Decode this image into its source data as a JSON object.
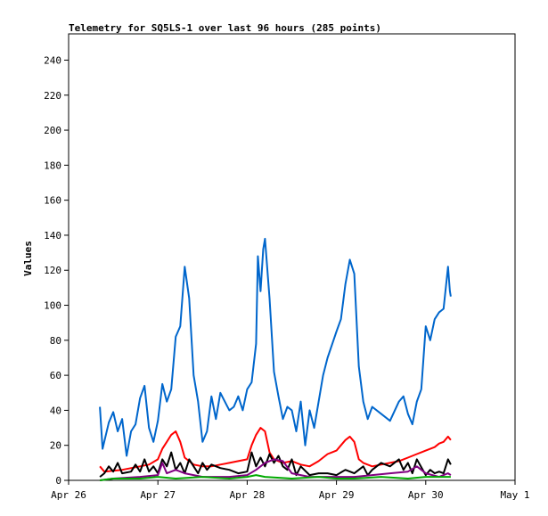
{
  "chart_data": {
    "type": "line",
    "title": "Telemetry for SQ5LS-1 over last 96 hours (285 points)",
    "xlabel": "",
    "ylabel": "Values",
    "ylim": [
      0,
      255
    ],
    "yticks": [
      0,
      20,
      40,
      60,
      80,
      100,
      120,
      140,
      160,
      180,
      200,
      220,
      240
    ],
    "xlim": [
      "Apr 26",
      "May 1"
    ],
    "xticks": [
      "Apr 26",
      "Apr 27",
      "Apr 28",
      "Apr 29",
      "Apr 30",
      "May 1"
    ],
    "grid": false,
    "legend": "none",
    "series": [
      {
        "color": "#0066cc",
        "points": [
          [
            0.35,
            42
          ],
          [
            0.38,
            18
          ],
          [
            0.45,
            33
          ],
          [
            0.5,
            39
          ],
          [
            0.55,
            28
          ],
          [
            0.6,
            35
          ],
          [
            0.65,
            14
          ],
          [
            0.7,
            28
          ],
          [
            0.75,
            32
          ],
          [
            0.8,
            47
          ],
          [
            0.85,
            54
          ],
          [
            0.9,
            30
          ],
          [
            0.95,
            22
          ],
          [
            1.0,
            34
          ],
          [
            1.05,
            55
          ],
          [
            1.1,
            45
          ],
          [
            1.15,
            52
          ],
          [
            1.2,
            82
          ],
          [
            1.25,
            88
          ],
          [
            1.3,
            122
          ],
          [
            1.35,
            104
          ],
          [
            1.4,
            60
          ],
          [
            1.45,
            45
          ],
          [
            1.5,
            22
          ],
          [
            1.55,
            28
          ],
          [
            1.6,
            48
          ],
          [
            1.65,
            35
          ],
          [
            1.7,
            50
          ],
          [
            1.75,
            45
          ],
          [
            1.8,
            40
          ],
          [
            1.85,
            42
          ],
          [
            1.9,
            48
          ],
          [
            1.95,
            40
          ],
          [
            2.0,
            52
          ],
          [
            2.05,
            56
          ],
          [
            2.1,
            78
          ],
          [
            2.12,
            128
          ],
          [
            2.15,
            108
          ],
          [
            2.18,
            132
          ],
          [
            2.2,
            138
          ],
          [
            2.25,
            104
          ],
          [
            2.3,
            62
          ],
          [
            2.35,
            48
          ],
          [
            2.4,
            35
          ],
          [
            2.45,
            42
          ],
          [
            2.5,
            40
          ],
          [
            2.55,
            28
          ],
          [
            2.6,
            45
          ],
          [
            2.65,
            20
          ],
          [
            2.7,
            40
          ],
          [
            2.75,
            30
          ],
          [
            2.8,
            45
          ],
          [
            2.85,
            60
          ],
          [
            2.9,
            70
          ],
          [
            3.0,
            85
          ],
          [
            3.05,
            92
          ],
          [
            3.1,
            112
          ],
          [
            3.15,
            126
          ],
          [
            3.2,
            118
          ],
          [
            3.25,
            65
          ],
          [
            3.3,
            45
          ],
          [
            3.35,
            35
          ],
          [
            3.4,
            42
          ],
          [
            3.5,
            38
          ],
          [
            3.6,
            34
          ],
          [
            3.7,
            45
          ],
          [
            3.75,
            48
          ],
          [
            3.8,
            38
          ],
          [
            3.85,
            32
          ],
          [
            3.9,
            45
          ],
          [
            3.95,
            52
          ],
          [
            4.0,
            88
          ],
          [
            4.05,
            80
          ],
          [
            4.1,
            92
          ],
          [
            4.15,
            96
          ],
          [
            4.2,
            98
          ],
          [
            4.25,
            122
          ],
          [
            4.27,
            108
          ],
          [
            4.28,
            105
          ]
        ]
      },
      {
        "color": "#ff0000",
        "points": [
          [
            0.35,
            8
          ],
          [
            0.4,
            5
          ],
          [
            0.6,
            6
          ],
          [
            0.8,
            8
          ],
          [
            0.9,
            9
          ],
          [
            1.0,
            12
          ],
          [
            1.05,
            18
          ],
          [
            1.1,
            22
          ],
          [
            1.15,
            26
          ],
          [
            1.2,
            28
          ],
          [
            1.25,
            22
          ],
          [
            1.3,
            13
          ],
          [
            1.4,
            9
          ],
          [
            1.5,
            8
          ],
          [
            1.6,
            8
          ],
          [
            1.7,
            9
          ],
          [
            1.8,
            10
          ],
          [
            1.9,
            11
          ],
          [
            2.0,
            12
          ],
          [
            2.05,
            20
          ],
          [
            2.1,
            26
          ],
          [
            2.15,
            30
          ],
          [
            2.2,
            28
          ],
          [
            2.25,
            16
          ],
          [
            2.3,
            12
          ],
          [
            2.4,
            10
          ],
          [
            2.5,
            11
          ],
          [
            2.6,
            9
          ],
          [
            2.7,
            8
          ],
          [
            2.8,
            11
          ],
          [
            2.9,
            15
          ],
          [
            3.0,
            17
          ],
          [
            3.05,
            20
          ],
          [
            3.1,
            23
          ],
          [
            3.15,
            25
          ],
          [
            3.2,
            22
          ],
          [
            3.25,
            12
          ],
          [
            3.3,
            10
          ],
          [
            3.4,
            8
          ],
          [
            3.5,
            9
          ],
          [
            3.6,
            10
          ],
          [
            3.7,
            11
          ],
          [
            3.8,
            13
          ],
          [
            3.9,
            15
          ],
          [
            4.0,
            17
          ],
          [
            4.1,
            19
          ],
          [
            4.15,
            21
          ],
          [
            4.2,
            22
          ],
          [
            4.25,
            25
          ],
          [
            4.28,
            23
          ]
        ]
      },
      {
        "color": "#000000",
        "points": [
          [
            0.35,
            2
          ],
          [
            0.4,
            4
          ],
          [
            0.45,
            8
          ],
          [
            0.5,
            5
          ],
          [
            0.55,
            10
          ],
          [
            0.6,
            4
          ],
          [
            0.7,
            5
          ],
          [
            0.75,
            9
          ],
          [
            0.8,
            5
          ],
          [
            0.85,
            12
          ],
          [
            0.9,
            5
          ],
          [
            0.95,
            8
          ],
          [
            1.0,
            4
          ],
          [
            1.05,
            12
          ],
          [
            1.1,
            8
          ],
          [
            1.15,
            16
          ],
          [
            1.2,
            6
          ],
          [
            1.25,
            10
          ],
          [
            1.3,
            4
          ],
          [
            1.35,
            12
          ],
          [
            1.4,
            8
          ],
          [
            1.45,
            4
          ],
          [
            1.5,
            10
          ],
          [
            1.55,
            6
          ],
          [
            1.6,
            9
          ],
          [
            1.7,
            7
          ],
          [
            1.8,
            6
          ],
          [
            1.9,
            4
          ],
          [
            2.0,
            5
          ],
          [
            2.05,
            16
          ],
          [
            2.1,
            8
          ],
          [
            2.15,
            13
          ],
          [
            2.2,
            8
          ],
          [
            2.25,
            15
          ],
          [
            2.3,
            10
          ],
          [
            2.35,
            14
          ],
          [
            2.4,
            8
          ],
          [
            2.45,
            6
          ],
          [
            2.5,
            12
          ],
          [
            2.55,
            3
          ],
          [
            2.6,
            8
          ],
          [
            2.7,
            3
          ],
          [
            2.8,
            4
          ],
          [
            2.9,
            4
          ],
          [
            3.0,
            3
          ],
          [
            3.1,
            6
          ],
          [
            3.2,
            4
          ],
          [
            3.3,
            8
          ],
          [
            3.35,
            3
          ],
          [
            3.4,
            6
          ],
          [
            3.5,
            10
          ],
          [
            3.6,
            8
          ],
          [
            3.7,
            12
          ],
          [
            3.75,
            6
          ],
          [
            3.8,
            10
          ],
          [
            3.85,
            4
          ],
          [
            3.9,
            12
          ],
          [
            4.0,
            3
          ],
          [
            4.05,
            6
          ],
          [
            4.1,
            4
          ],
          [
            4.15,
            5
          ],
          [
            4.2,
            4
          ],
          [
            4.25,
            12
          ],
          [
            4.28,
            9
          ]
        ]
      },
      {
        "color": "#800080",
        "points": [
          [
            0.35,
            0
          ],
          [
            0.5,
            1
          ],
          [
            0.8,
            2
          ],
          [
            1.0,
            3
          ],
          [
            1.05,
            10
          ],
          [
            1.1,
            4
          ],
          [
            1.2,
            6
          ],
          [
            1.3,
            4
          ],
          [
            1.5,
            2
          ],
          [
            1.8,
            2
          ],
          [
            2.0,
            3
          ],
          [
            2.1,
            6
          ],
          [
            2.2,
            10
          ],
          [
            2.3,
            12
          ],
          [
            2.4,
            11
          ],
          [
            2.5,
            4
          ],
          [
            2.7,
            2
          ],
          [
            3.0,
            2
          ],
          [
            3.2,
            2
          ],
          [
            3.4,
            3
          ],
          [
            3.6,
            4
          ],
          [
            3.8,
            5
          ],
          [
            3.9,
            8
          ],
          [
            4.0,
            4
          ],
          [
            4.15,
            2
          ],
          [
            4.2,
            3
          ],
          [
            4.25,
            4
          ],
          [
            4.28,
            3
          ]
        ]
      },
      {
        "color": "#00aa00",
        "points": [
          [
            0.35,
            0
          ],
          [
            0.5,
            1
          ],
          [
            0.8,
            1
          ],
          [
            1.0,
            2
          ],
          [
            1.2,
            1
          ],
          [
            1.5,
            2
          ],
          [
            1.8,
            1
          ],
          [
            2.0,
            2
          ],
          [
            2.1,
            3
          ],
          [
            2.2,
            2
          ],
          [
            2.5,
            1
          ],
          [
            2.8,
            2
          ],
          [
            3.0,
            1
          ],
          [
            3.2,
            1
          ],
          [
            3.5,
            2
          ],
          [
            3.8,
            1
          ],
          [
            4.0,
            2
          ],
          [
            4.28,
            2
          ]
        ]
      }
    ]
  }
}
